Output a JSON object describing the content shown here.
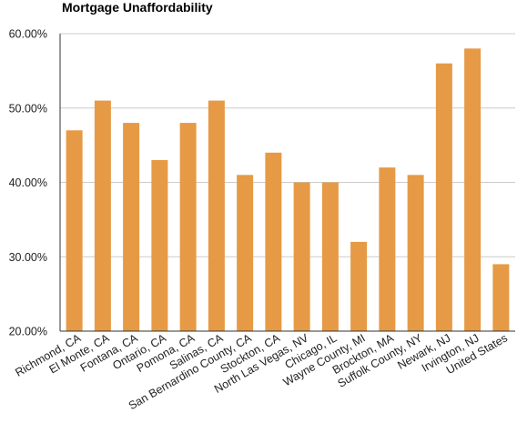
{
  "chart_data": {
    "type": "bar",
    "title": "Mortgage Unaffordability",
    "xlabel": "",
    "ylabel": "",
    "categories": [
      "Richmond, CA",
      "El Monte, CA",
      "Fontana, CA",
      "Ontario, CA",
      "Pomona, CA",
      "Salinas, CA",
      "San Bernardino County, CA",
      "Stockton, CA",
      "North Las Vegas, NV",
      "Chicago, IL",
      "Wayne County, MI",
      "Brockton, MA",
      "Suffolk County, NY",
      "Newark, NJ",
      "Irvington, NJ",
      "United States"
    ],
    "values": [
      47,
      51,
      48,
      43,
      48,
      51,
      41,
      44,
      40,
      40,
      32,
      42,
      41,
      56,
      58,
      29
    ],
    "ylim": [
      20,
      60
    ],
    "yticks": [
      20,
      30,
      40,
      50,
      60
    ],
    "ytick_labels": [
      "20.00%",
      "30.00%",
      "40.00%",
      "50.00%",
      "60.00%"
    ],
    "grid": true,
    "legend": "none",
    "colors": {
      "bar": "#E69A45",
      "grid": "#cccccc",
      "axis": "#333333"
    }
  }
}
